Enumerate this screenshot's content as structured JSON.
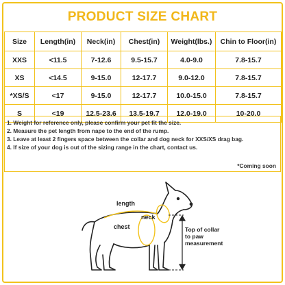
{
  "title": "PRODUCT SIZE CHART",
  "table": {
    "headers": [
      "Size",
      "Length(in)",
      "Neck(in)",
      "Chest(in)",
      "Weight(lbs.)",
      "Chin to Floor(in)"
    ],
    "rows": [
      [
        "XXS",
        "<11.5",
        "7-12.6",
        "9.5-15.7",
        "4.0-9.0",
        "7.8-15.7"
      ],
      [
        "XS",
        "<14.5",
        "9-15.0",
        "12-17.7",
        "9.0-12.0",
        "7.8-15.7"
      ],
      [
        "*XS/S",
        "<17",
        "9-15.0",
        "12-17.7",
        "10.0-15.0",
        "7.8-15.7"
      ],
      [
        "S",
        "<19",
        "12.5-23.6",
        "13.5-19.7",
        "12.0-19.0",
        "10-20.0"
      ]
    ]
  },
  "notes": [
    "1. Weight for reference only, please confirm your pet fit the size.",
    "2. Measure the pet length from nape to the end of the rump.",
    "3. Leave at least 2 fingers space between the collar and dog neck for XXS/XS drag bag.",
    "4. If size of your dog is out of the sizing range in the chart, contact us."
  ],
  "coming_soon": "*Coming soon",
  "diagram": {
    "length_label": "length",
    "neck_label": "neck",
    "chest_label": "chest",
    "measure_label_line1": "Top of collar",
    "measure_label_line2": "to paw",
    "measure_label_line3": "measurement"
  },
  "colors": {
    "accent": "#f2c21b",
    "title": "#f1b71a",
    "text": "#222222"
  }
}
